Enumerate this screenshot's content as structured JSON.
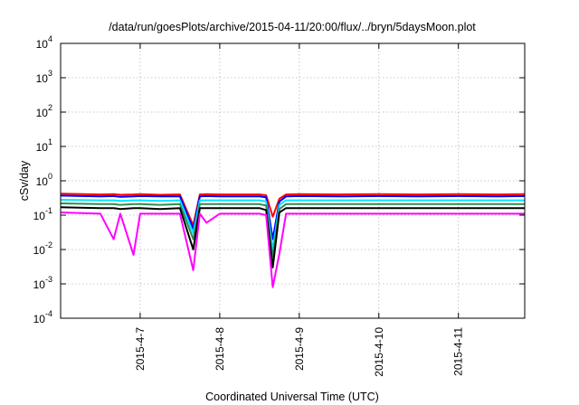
{
  "chart_data": {
    "type": "line",
    "title": "/data/run/goesPlots/archive/2015-04-11/20:00/flux/../bryn/5daysMoon.plot",
    "xlabel": "Coordinated Universal Time (UTC)",
    "ylabel": "cSv/day",
    "yscale": "log",
    "ylim": [
      0.0001,
      10000
    ],
    "y_ticks": [
      {
        "value": 0.0001,
        "base": "10",
        "exp": "-4"
      },
      {
        "value": 0.001,
        "base": "10",
        "exp": "-3"
      },
      {
        "value": 0.01,
        "base": "10",
        "exp": "-2"
      },
      {
        "value": 0.1,
        "base": "10",
        "exp": "-1"
      },
      {
        "value": 1,
        "base": "10",
        "exp": "0"
      },
      {
        "value": 10,
        "base": "10",
        "exp": "1"
      },
      {
        "value": 100,
        "base": "10",
        "exp": "2"
      },
      {
        "value": 1000,
        "base": "10",
        "exp": "3"
      },
      {
        "value": 10000,
        "base": "10",
        "exp": "4"
      }
    ],
    "xlim": [
      "2015-04-06 00:00",
      "2015-04-11 20:00"
    ],
    "x_ticks": [
      "2015-4-7",
      "2015-4-8",
      "2015-4-9",
      "2015-4-10",
      "2015-4-11"
    ],
    "grid": true,
    "x": [
      "2015-04-06 00:00",
      "2015-04-06 12:00",
      "2015-04-06 16:00",
      "2015-04-06 18:00",
      "2015-04-06 22:00",
      "2015-04-07 00:00",
      "2015-04-07 06:00",
      "2015-04-07 12:00",
      "2015-04-07 16:00",
      "2015-04-07 18:00",
      "2015-04-07 20:00",
      "2015-04-08 00:00",
      "2015-04-08 03:00",
      "2015-04-08 12:00",
      "2015-04-08 14:00",
      "2015-04-08 16:00",
      "2015-04-08 18:00",
      "2015-04-08 20:00",
      "2015-04-09 00:00",
      "2015-04-09 12:00",
      "2015-04-10 00:00",
      "2015-04-10 12:00",
      "2015-04-11 00:00",
      "2015-04-11 12:00",
      "2015-04-11 20:00"
    ],
    "series": [
      {
        "color": "#ff0000",
        "values": [
          0.42,
          0.4,
          0.41,
          0.39,
          0.4,
          0.41,
          0.39,
          0.4,
          0.05,
          0.4,
          0.41,
          0.4,
          0.4,
          0.4,
          0.38,
          0.09,
          0.3,
          0.4,
          0.41,
          0.4,
          0.41,
          0.4,
          0.41,
          0.4,
          0.41
        ]
      },
      {
        "color": "#0000ff",
        "values": [
          0.37,
          0.35,
          0.36,
          0.34,
          0.35,
          0.36,
          0.35,
          0.35,
          0.04,
          0.35,
          0.36,
          0.35,
          0.35,
          0.35,
          0.33,
          0.02,
          0.25,
          0.35,
          0.36,
          0.35,
          0.36,
          0.35,
          0.36,
          0.35,
          0.36
        ]
      },
      {
        "color": "#00e5ff",
        "values": [
          0.28,
          0.27,
          0.27,
          0.26,
          0.27,
          0.27,
          0.26,
          0.27,
          0.03,
          0.27,
          0.27,
          0.27,
          0.27,
          0.27,
          0.25,
          0.01,
          0.2,
          0.27,
          0.27,
          0.27,
          0.27,
          0.27,
          0.27,
          0.27,
          0.27
        ]
      },
      {
        "color": "#2e8b57",
        "values": [
          0.22,
          0.21,
          0.21,
          0.2,
          0.21,
          0.21,
          0.2,
          0.21,
          0.02,
          0.21,
          0.21,
          0.21,
          0.21,
          0.21,
          0.19,
          0.006,
          0.15,
          0.21,
          0.21,
          0.21,
          0.21,
          0.21,
          0.21,
          0.21,
          0.21
        ]
      },
      {
        "color": "#000000",
        "values": [
          0.17,
          0.16,
          0.16,
          0.15,
          0.16,
          0.16,
          0.15,
          0.16,
          0.01,
          0.16,
          0.16,
          0.16,
          0.16,
          0.16,
          0.14,
          0.003,
          0.12,
          0.16,
          0.16,
          0.16,
          0.16,
          0.16,
          0.16,
          0.16,
          0.16
        ]
      },
      {
        "color": "#ff00ff",
        "values": [
          0.12,
          0.11,
          0.02,
          0.11,
          0.007,
          0.11,
          0.11,
          0.11,
          0.0025,
          0.11,
          0.06,
          0.11,
          0.11,
          0.11,
          0.1,
          0.0008,
          0.0075,
          0.11,
          0.11,
          0.11,
          0.11,
          0.11,
          0.11,
          0.11,
          0.11
        ]
      }
    ]
  }
}
